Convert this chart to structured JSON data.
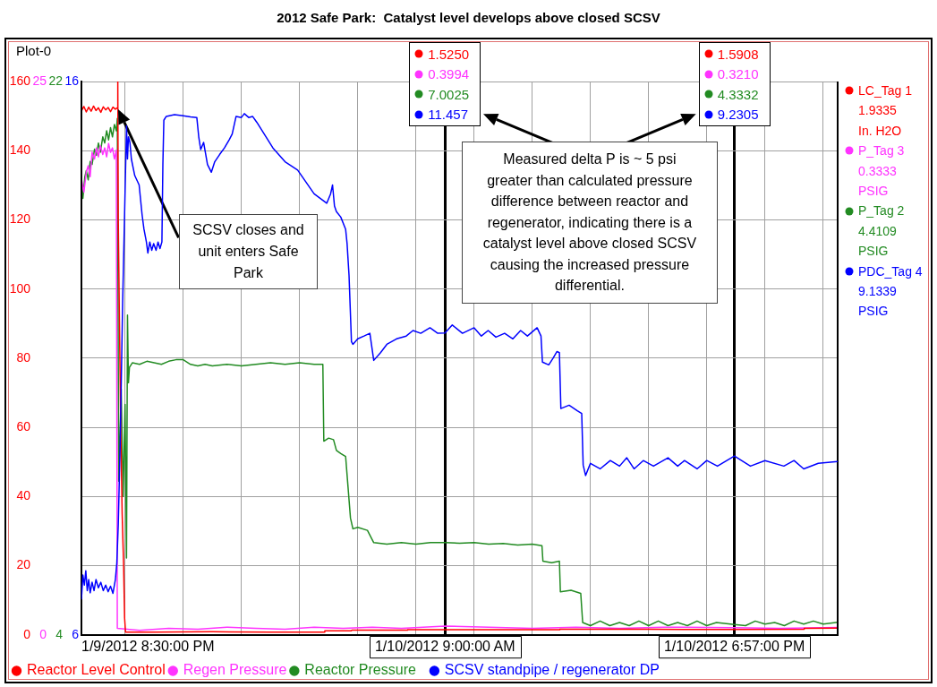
{
  "chart_data": [
    {
      "type": "line",
      "title": "2012 Safe Park:  Catalyst level develops above closed SCSV",
      "annotations": [
        "Plot-0",
        "SCSV closes and unit enters Safe Park",
        "Measured delta P is ~ 5 psi greater than calculated pressure difference between reactor and regenerator, indicating there is a catalyst level above closed SCSV causing the increased pressure differential.",
        "LC_Tag 1",
        "1.9335",
        "In. H2O",
        "1.5250",
        "1.5908",
        "P_Tag 3",
        "0.3333",
        "PSIG",
        "0.3994",
        "0.3210",
        "P_Tag 2",
        "4.4109",
        "PSIG",
        "7.0025",
        "4.3332"
      ],
      "xlim": [
        "2012-01-09T20:30",
        "2012-01-10T22:30"
      ],
      "xticks": [
        {
          "value": "2012-01-09T20:30",
          "label": "1/9/2012 8:30:00 PM"
        },
        {
          "value": "2012-01-09T22:00",
          "label": null
        },
        {
          "value": "2012-01-10T00:00",
          "label": null
        },
        {
          "value": "2012-01-10T02:00",
          "label": null
        },
        {
          "value": "2012-01-10T04:00",
          "label": null
        },
        {
          "value": "2012-01-10T06:00",
          "label": null
        },
        {
          "value": "2012-01-10T08:00",
          "label": null
        },
        {
          "value": "2012-01-10T09:00",
          "label": "1/10/2012 9:00:00 AM"
        },
        {
          "value": "2012-01-10T10:00",
          "label": null
        },
        {
          "value": "2012-01-10T12:00",
          "label": null
        },
        {
          "value": "2012-01-10T14:00",
          "label": null
        },
        {
          "value": "2012-01-10T16:00",
          "label": null
        },
        {
          "value": "2012-01-10T18:00",
          "label": null
        },
        {
          "value": "2012-01-10T18:57",
          "label": "1/10/2012 6:57:00 PM"
        },
        {
          "value": "2012-01-10T20:00",
          "label": null
        },
        {
          "value": "2012-01-10T22:00",
          "label": null
        }
      ],
      "ylim": [
        0,
        160
      ],
      "yticks": [
        0,
        20,
        40,
        60,
        80,
        100,
        120,
        140,
        160
      ],
      "y2lim": [
        0,
        25
      ],
      "y2ticks": [
        0,
        25
      ],
      "y3lim": [
        4,
        22
      ],
      "y3ticks": [
        4,
        22
      ],
      "grid": true,
      "legend": "bottom left",
      "series": [
        {
          "name": "Reactor Level Control",
          "color": "#ff0000",
          "axis": "y",
          "x": [
            "2012-01-09T20:30",
            "2012-01-09T20:35",
            "2012-01-09T20:40",
            "2012-01-09T20:45",
            "2012-01-09T20:50",
            "2012-01-09T20:55",
            "2012-01-09T21:00",
            "2012-01-09T21:05",
            "2012-01-09T21:10",
            "2012-01-09T21:15",
            "2012-01-09T21:20",
            "2012-01-09T21:25",
            "2012-01-09T21:30",
            "2012-01-09T21:35",
            "2012-01-09T21:40",
            "2012-01-09T21:44",
            "2012-01-09T21:45",
            "2012-01-09T21:46",
            "2012-01-09T21:48",
            "2012-01-09T21:51",
            "2012-01-09T21:54",
            "2012-01-09T21:57",
            "2012-01-09T21:59",
            "2012-01-09T22:01",
            "2012-01-09T23:00",
            "2012-01-10T01:00",
            "2012-01-10T03:00",
            "2012-01-10T04:51",
            "2012-01-10T04:52",
            "2012-01-10T05:47",
            "2012-01-10T05:48",
            "2012-01-10T07:42",
            "2012-01-10T07:43",
            "2012-01-10T09:00",
            "2012-01-10T11:00",
            "2012-01-10T12:56",
            "2012-01-10T12:57",
            "2012-01-10T16:00",
            "2012-01-10T18:57",
            "2012-01-10T21:20",
            "2012-01-10T21:21",
            "2012-01-10T22:30"
          ],
          "values": [
            151.5,
            152.8,
            151.2,
            152.6,
            151.4,
            152.9,
            151.6,
            152.4,
            151.1,
            152.7,
            151.8,
            152.5,
            151.3,
            152.6,
            152.0,
            152.4,
            160,
            120,
            95,
            60,
            35,
            20,
            5,
            0.8,
            0.8,
            0.9,
            0.8,
            0.8,
            1.2,
            1.2,
            1.4,
            1.4,
            1.5,
            1.525,
            1.5,
            1.5,
            1.6,
            1.6,
            1.5908,
            1.6,
            1.9,
            1.9335
          ]
        },
        {
          "name": "Regen Pressure",
          "color": "#ff33ff",
          "axis": "y2",
          "x": [
            "2012-01-09T20:30",
            "2012-01-09T20:35",
            "2012-01-09T20:40",
            "2012-01-09T20:44",
            "2012-01-09T20:48",
            "2012-01-09T20:52",
            "2012-01-09T20:57",
            "2012-01-09T21:01",
            "2012-01-09T21:05",
            "2012-01-09T21:09",
            "2012-01-09T21:14",
            "2012-01-09T21:18",
            "2012-01-09T21:22",
            "2012-01-09T21:26",
            "2012-01-09T21:30",
            "2012-01-09T21:34",
            "2012-01-09T21:38",
            "2012-01-09T21:42",
            "2012-01-09T21:44",
            "2012-01-09T22:30",
            "2012-01-09T23:30",
            "2012-01-10T00:30",
            "2012-01-10T01:30",
            "2012-01-10T02:30",
            "2012-01-10T03:30",
            "2012-01-10T04:30",
            "2012-01-10T05:30",
            "2012-01-10T06:30",
            "2012-01-10T07:30",
            "2012-01-10T09:00",
            "2012-01-10T10:30",
            "2012-01-10T12:00",
            "2012-01-10T13:30",
            "2012-01-10T15:00",
            "2012-01-10T16:30",
            "2012-01-10T18:57",
            "2012-01-10T20:30",
            "2012-01-10T22:30"
          ],
          "values": [
            20.6,
            20.0,
            20.9,
            21.2,
            20.7,
            21.8,
            21.5,
            22.0,
            21.6,
            22.1,
            21.7,
            22.0,
            21.6,
            22.2,
            21.8,
            22.0,
            21.5,
            21.9,
            0.3,
            0.2,
            0.3,
            0.25,
            0.35,
            0.3,
            0.25,
            0.35,
            0.3,
            0.35,
            0.3,
            0.3994,
            0.35,
            0.3,
            0.35,
            0.3,
            0.35,
            0.321,
            0.3,
            0.3333
          ]
        },
        {
          "name": "Reactor Pressure",
          "color": "#228b22",
          "axis": "y3",
          "x": [
            "2012-01-09T20:30",
            "2012-01-09T20:33",
            "2012-01-09T20:37",
            "2012-01-09T20:40",
            "2012-01-09T20:44",
            "2012-01-09T20:48",
            "2012-01-09T20:52",
            "2012-01-09T20:57",
            "2012-01-09T21:01",
            "2012-01-09T21:05",
            "2012-01-09T21:09",
            "2012-01-09T21:14",
            "2012-01-09T21:18",
            "2012-01-09T21:22",
            "2012-01-09T21:26",
            "2012-01-09T21:30",
            "2012-01-09T21:34",
            "2012-01-09T21:38",
            "2012-01-09T21:42",
            "2012-01-09T21:44",
            "2012-01-09T21:47",
            "2012-01-09T21:52",
            "2012-01-09T21:56",
            "2012-01-09T22:00",
            "2012-01-09T22:03",
            "2012-01-09T22:05",
            "2012-01-09T22:07",
            "2012-01-09T22:09",
            "2012-01-09T22:15",
            "2012-01-09T22:30",
            "2012-01-09T22:45",
            "2012-01-09T23:00",
            "2012-01-09T23:15",
            "2012-01-09T23:30",
            "2012-01-09T23:45",
            "2012-01-10T00:00",
            "2012-01-10T00:15",
            "2012-01-10T00:30",
            "2012-01-10T00:45",
            "2012-01-10T01:00",
            "2012-01-10T01:30",
            "2012-01-10T02:00",
            "2012-01-10T02:30",
            "2012-01-10T03:00",
            "2012-01-10T03:30",
            "2012-01-10T04:00",
            "2012-01-10T04:30",
            "2012-01-10T04:48",
            "2012-01-10T04:50",
            "2012-01-10T05:00",
            "2012-01-10T05:10",
            "2012-01-10T05:16",
            "2012-01-10T05:25",
            "2012-01-10T05:35",
            "2012-01-10T05:38",
            "2012-01-10T05:45",
            "2012-01-10T05:50",
            "2012-01-10T06:00",
            "2012-01-10T06:20",
            "2012-01-10T06:33",
            "2012-01-10T07:00",
            "2012-01-10T07:30",
            "2012-01-10T08:00",
            "2012-01-10T08:30",
            "2012-01-10T09:00",
            "2012-01-10T09:30",
            "2012-01-10T10:00",
            "2012-01-10T10:30",
            "2012-01-10T11:00",
            "2012-01-10T11:30",
            "2012-01-10T12:00",
            "2012-01-10T12:20",
            "2012-01-10T12:22",
            "2012-01-10T12:40",
            "2012-01-10T12:56",
            "2012-01-10T12:58",
            "2012-01-10T13:20",
            "2012-01-10T13:40",
            "2012-01-10T13:44",
            "2012-01-10T14:00",
            "2012-01-10T14:20",
            "2012-01-10T14:40",
            "2012-01-10T15:00",
            "2012-01-10T15:20",
            "2012-01-10T15:40",
            "2012-01-10T16:00",
            "2012-01-10T16:20",
            "2012-01-10T16:40",
            "2012-01-10T17:00",
            "2012-01-10T17:20",
            "2012-01-10T17:40",
            "2012-01-10T18:00",
            "2012-01-10T18:20",
            "2012-01-10T18:57",
            "2012-01-10T19:20",
            "2012-01-10T19:40",
            "2012-01-10T20:00",
            "2012-01-10T20:20",
            "2012-01-10T20:40",
            "2012-01-10T21:00",
            "2012-01-10T21:20",
            "2012-01-10T21:40",
            "2012-01-10T22:00",
            "2012-01-10T22:30"
          ],
          "values": [
            18.7,
            18.2,
            18.9,
            19.1,
            18.8,
            19.4,
            19.3,
            19.8,
            19.6,
            20.0,
            19.7,
            20.2,
            20.0,
            20.4,
            20.1,
            20.5,
            20.2,
            20.6,
            20.4,
            20.8,
            9.0,
            12.0,
            8.5,
            11.5,
            6.5,
            14.4,
            12.2,
            12.7,
            12.85,
            12.8,
            12.9,
            12.85,
            12.8,
            12.9,
            12.95,
            12.95,
            12.8,
            12.75,
            12.8,
            12.75,
            12.8,
            12.75,
            12.8,
            12.85,
            12.8,
            12.85,
            12.8,
            12.8,
            10.3,
            10.4,
            10.35,
            10.0,
            9.9,
            9.8,
            9.2,
            7.8,
            7.45,
            7.5,
            7.4,
            7.0,
            6.95,
            7.0,
            6.95,
            7.0,
            7.0025,
            6.98,
            7.0,
            6.95,
            6.97,
            6.92,
            6.95,
            6.9,
            6.4,
            6.35,
            6.4,
            5.4,
            5.45,
            5.35,
            4.4,
            4.3,
            4.45,
            4.3,
            4.4,
            4.3,
            4.45,
            4.3,
            4.45,
            4.3,
            4.4,
            4.3,
            4.45,
            4.3,
            4.4,
            4.3332,
            4.3,
            4.45,
            4.35,
            4.4,
            4.3,
            4.45,
            4.35,
            4.45,
            4.35,
            4.4109
          ]
        }
      ]
    },
    {
      "type": "line",
      "annotations": [
        "PDC_Tag 4",
        "9.1339",
        "PSIG",
        "11.457",
        "9.2305"
      ],
      "xlim": [
        "2012-01-09T20:30",
        "2012-01-10T22:30"
      ],
      "ylim": [
        6,
        16
      ],
      "yticks": [
        6,
        16
      ],
      "tick_labels": "y",
      "legend": "bottom right",
      "series": [
        {
          "name": "SCSV standpipe / regenerator DP",
          "color": "#0000ff",
          "axis": "y",
          "x": [
            "2012-01-09T20:30",
            "2012-01-09T20:33",
            "2012-01-09T20:36",
            "2012-01-09T20:39",
            "2012-01-09T20:42",
            "2012-01-09T20:45",
            "2012-01-09T20:48",
            "2012-01-09T20:52",
            "2012-01-09T20:56",
            "2012-01-09T21:00",
            "2012-01-09T21:05",
            "2012-01-09T21:10",
            "2012-01-09T21:15",
            "2012-01-09T21:20",
            "2012-01-09T21:25",
            "2012-01-09T21:30",
            "2012-01-09T21:35",
            "2012-01-09T21:40",
            "2012-01-09T21:43",
            "2012-01-09T21:46",
            "2012-01-09T21:50",
            "2012-01-09T21:55",
            "2012-01-09T22:00",
            "2012-01-09T22:03",
            "2012-01-09T22:05",
            "2012-01-09T22:07",
            "2012-01-09T22:10",
            "2012-01-09T22:13",
            "2012-01-09T22:20",
            "2012-01-09T22:29",
            "2012-01-09T22:35",
            "2012-01-09T22:39",
            "2012-01-09T22:44",
            "2012-01-09T22:47",
            "2012-01-09T22:51",
            "2012-01-09T22:55",
            "2012-01-09T22:59",
            "2012-01-09T23:04",
            "2012-01-09T23:08",
            "2012-01-09T23:12",
            "2012-01-09T23:16",
            "2012-01-09T23:18",
            "2012-01-09T23:20",
            "2012-01-09T23:25",
            "2012-01-09T23:42",
            "2012-01-10T00:00",
            "2012-01-10T00:15",
            "2012-01-10T00:28",
            "2012-01-10T00:32",
            "2012-01-10T00:36",
            "2012-01-10T00:42",
            "2012-01-10T00:50",
            "2012-01-10T00:58",
            "2012-01-10T01:05",
            "2012-01-10T01:15",
            "2012-01-10T01:25",
            "2012-01-10T01:35",
            "2012-01-10T01:41",
            "2012-01-10T01:49",
            "2012-01-10T02:00",
            "2012-01-10T02:06",
            "2012-01-10T02:15",
            "2012-01-10T02:23",
            "2012-01-10T02:32",
            "2012-01-10T03:05",
            "2012-01-10T03:30",
            "2012-01-10T03:56",
            "2012-01-10T04:30",
            "2012-01-10T04:56",
            "2012-01-10T05:04",
            "2012-01-10T05:08",
            "2012-01-10T05:12",
            "2012-01-10T05:16",
            "2012-01-10T05:25",
            "2012-01-10T05:35",
            "2012-01-10T05:38",
            "2012-01-10T05:42",
            "2012-01-10T05:47",
            "2012-01-10T05:50",
            "2012-01-10T06:00",
            "2012-01-10T06:13",
            "2012-01-10T06:25",
            "2012-01-10T06:33",
            "2012-01-10T06:47",
            "2012-01-10T07:00",
            "2012-01-10T07:20",
            "2012-01-10T07:40",
            "2012-01-10T07:54",
            "2012-01-10T08:10",
            "2012-01-10T08:29",
            "2012-01-10T08:45",
            "2012-01-10T09:00",
            "2012-01-10T09:15",
            "2012-01-10T09:36",
            "2012-01-10T10:00",
            "2012-01-10T10:15",
            "2012-01-10T10:29",
            "2012-01-10T10:45",
            "2012-01-10T11:03",
            "2012-01-10T11:20",
            "2012-01-10T11:36",
            "2012-01-10T11:50",
            "2012-01-10T12:10",
            "2012-01-10T12:18",
            "2012-01-10T12:21",
            "2012-01-10T12:34",
            "2012-01-10T12:43",
            "2012-01-10T12:51",
            "2012-01-10T12:56",
            "2012-01-10T12:59",
            "2012-01-10T13:16",
            "2012-01-10T13:33",
            "2012-01-10T13:42",
            "2012-01-10T13:45",
            "2012-01-10T13:50",
            "2012-01-10T14:00",
            "2012-01-10T14:20",
            "2012-01-10T14:41",
            "2012-01-10T15:00",
            "2012-01-10T15:15",
            "2012-01-10T15:30",
            "2012-01-10T15:49",
            "2012-01-10T16:10",
            "2012-01-10T16:40",
            "2012-01-10T17:00",
            "2012-01-10T17:14",
            "2012-01-10T17:40",
            "2012-01-10T18:00",
            "2012-01-10T18:22",
            "2012-01-10T18:57",
            "2012-01-10T19:30",
            "2012-01-10T20:00",
            "2012-01-10T20:39",
            "2012-01-10T21:00",
            "2012-01-10T21:20",
            "2012-01-10T21:50",
            "2012-01-10T22:30"
          ],
          "values": [
            6.64,
            7.08,
            6.9,
            7.16,
            6.8,
            7.0,
            6.76,
            6.95,
            6.8,
            7.0,
            6.85,
            6.95,
            6.8,
            6.9,
            6.78,
            6.88,
            6.75,
            7.0,
            7.3,
            8.0,
            9.5,
            12.0,
            14.0,
            15.2,
            14.6,
            15.0,
            14.9,
            14.6,
            14.3,
            14.13,
            13.6,
            13.33,
            13.1,
            12.9,
            13.1,
            12.95,
            13.07,
            12.95,
            13.1,
            12.98,
            13.1,
            14.5,
            15.3,
            15.37,
            15.4,
            15.38,
            15.36,
            15.35,
            15.0,
            14.77,
            14.9,
            14.5,
            14.36,
            14.55,
            14.68,
            14.8,
            14.95,
            15.05,
            15.37,
            15.35,
            15.42,
            15.35,
            15.37,
            15.26,
            14.8,
            14.55,
            14.4,
            13.97,
            13.8,
            13.97,
            14.13,
            13.75,
            13.65,
            13.55,
            13.33,
            13.07,
            12.5,
            11.3,
            11.25,
            11.35,
            11.4,
            11.45,
            10.96,
            11.1,
            11.25,
            11.35,
            11.4,
            11.5,
            11.45,
            11.55,
            11.45,
            11.457,
            11.6,
            11.45,
            11.55,
            11.4,
            11.5,
            11.38,
            11.45,
            11.35,
            11.5,
            11.4,
            11.55,
            11.4,
            10.93,
            10.88,
            11.0,
            11.12,
            11.1,
            10.09,
            10.15,
            10.05,
            10.0,
            9.07,
            8.88,
            9.1,
            9.0,
            9.15,
            9.05,
            9.2,
            9.0,
            9.15,
            9.05,
            9.2,
            9.05,
            9.15,
            9.0,
            9.15,
            9.05,
            9.2305,
            9.05,
            9.15,
            9.05,
            9.15,
            9.0,
            9.1,
            9.1339
          ]
        }
      ]
    }
  ]
}
